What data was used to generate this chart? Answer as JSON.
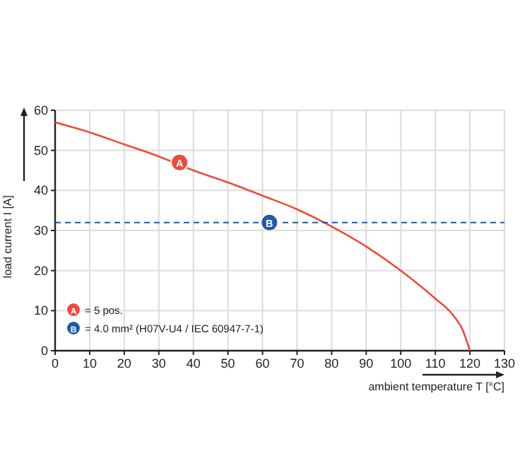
{
  "chart_data": {
    "type": "line",
    "xlabel": "ambient temperature T [°C]",
    "ylabel": "load current I [A]",
    "x": [
      0,
      10,
      20,
      30,
      40,
      50,
      60,
      70,
      80,
      90,
      100,
      110,
      115,
      118,
      120
    ],
    "series": [
      {
        "name": "= 5 pos.",
        "color": "#f04a3a",
        "values": [
          57,
          54.5,
          51.5,
          48.5,
          45,
          42,
          38.7,
          35.3,
          31,
          26,
          20,
          13,
          9,
          5,
          0
        ]
      },
      {
        "name": "= 4.0 mm² (H07V-U4 / IEC 60947-7-1)",
        "color": "#1f5aa6",
        "x": [
          0,
          130
        ],
        "values": [
          32,
          32
        ],
        "line_style": "dashed"
      }
    ],
    "annotations": [
      {
        "text": "A",
        "x": 36,
        "y": 47
      },
      {
        "text": "B",
        "x": 62,
        "y": 32
      }
    ],
    "xlim": [
      0,
      130
    ],
    "ylim": [
      0,
      60
    ],
    "xticks": [
      0,
      10,
      20,
      30,
      40,
      50,
      60,
      70,
      80,
      90,
      100,
      110,
      120,
      130
    ],
    "yticks": [
      0,
      10,
      20,
      30,
      40,
      50,
      60
    ],
    "grid": true,
    "legend": "bottom left",
    "line_style": "solid"
  }
}
